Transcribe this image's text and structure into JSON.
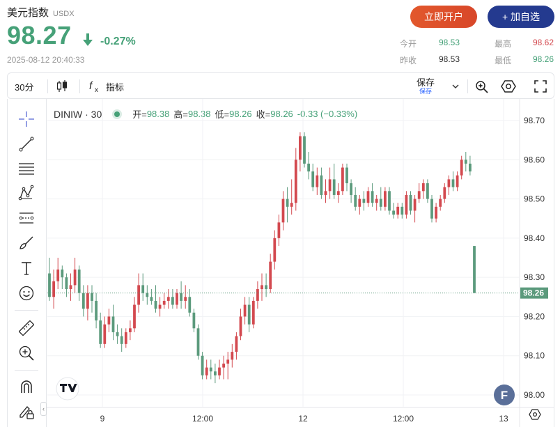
{
  "header": {
    "name": "美元指数",
    "code": "USDX",
    "price": "98.27",
    "change_pct": "-0.27%",
    "timestamp": "2025-08-12 20:40:33",
    "open_account_label": "立即开户",
    "add_watch_label": "+ 加自选",
    "down_color": "#46a178",
    "up_color": "#d3494f"
  },
  "stats": {
    "open_label": "今开",
    "open_value": "98.53",
    "high_label": "最高",
    "high_value": "98.62",
    "prev_close_label": "昨收",
    "prev_close_value": "98.53",
    "low_label": "最低",
    "low_value": "98.26"
  },
  "toolbar": {
    "interval": "30分",
    "indicators_label": "指标",
    "save_label": "保存",
    "save_sub_label": "保存"
  },
  "legend": {
    "symbol": "DINIW · 30",
    "open_label": "开=",
    "open_value": "98.38",
    "high_label": "高=",
    "high_value": "98.38",
    "low_label": "低=",
    "low_value": "98.26",
    "close_label": "收=",
    "close_value": "98.26",
    "change": "-0.33 (−0.33%)"
  },
  "chart_data": {
    "type": "candlestick",
    "symbol": "DINIW",
    "interval": "30",
    "y_ticks": [
      "98.70",
      "98.60",
      "98.50",
      "98.40",
      "98.30",
      "98.20",
      "98.10",
      "98.00"
    ],
    "ylim": [
      97.98,
      98.75
    ],
    "x_tick_labels": [
      "9",
      "12:00",
      "12",
      "12:00",
      "13"
    ],
    "last_price_label": "98.26",
    "last_price": 98.26,
    "up_color": "#d3494f",
    "down_color": "#5b9a7c",
    "candles": [
      [
        98.31,
        98.35,
        98.24,
        98.25
      ],
      [
        98.25,
        98.32,
        98.22,
        98.29
      ],
      [
        98.29,
        98.35,
        98.27,
        98.32
      ],
      [
        98.32,
        98.33,
        98.27,
        98.3
      ],
      [
        98.3,
        98.31,
        98.25,
        98.27
      ],
      [
        98.27,
        98.31,
        98.24,
        98.28
      ],
      [
        98.28,
        98.35,
        98.26,
        98.32
      ],
      [
        98.32,
        98.33,
        98.24,
        98.26
      ],
      [
        98.26,
        98.28,
        98.2,
        98.22
      ],
      [
        98.22,
        98.28,
        98.19,
        98.26
      ],
      [
        98.26,
        98.28,
        98.21,
        98.24
      ],
      [
        98.24,
        98.26,
        98.17,
        98.19
      ],
      [
        98.19,
        98.21,
        98.12,
        98.13
      ],
      [
        98.13,
        98.2,
        98.12,
        98.18
      ],
      [
        98.18,
        98.22,
        98.16,
        98.2
      ],
      [
        98.2,
        98.23,
        98.14,
        98.16
      ],
      [
        98.16,
        98.18,
        98.13,
        98.15
      ],
      [
        98.15,
        98.17,
        98.11,
        98.13
      ],
      [
        98.13,
        98.17,
        98.12,
        98.16
      ],
      [
        98.16,
        98.19,
        98.14,
        98.17
      ],
      [
        98.17,
        98.25,
        98.16,
        98.23
      ],
      [
        98.23,
        98.31,
        98.21,
        98.28
      ],
      [
        98.28,
        98.31,
        98.24,
        98.26
      ],
      [
        98.26,
        98.28,
        98.23,
        98.25
      ],
      [
        98.25,
        98.27,
        98.23,
        98.24
      ],
      [
        98.24,
        98.28,
        98.21,
        98.22
      ],
      [
        98.22,
        98.25,
        98.2,
        98.23
      ],
      [
        98.23,
        98.26,
        98.22,
        98.24
      ],
      [
        98.24,
        98.27,
        98.22,
        98.25
      ],
      [
        98.25,
        98.27,
        98.22,
        98.23
      ],
      [
        98.23,
        98.27,
        98.22,
        98.26
      ],
      [
        98.26,
        98.29,
        98.22,
        98.24
      ],
      [
        98.24,
        98.28,
        98.22,
        98.25
      ],
      [
        98.25,
        98.27,
        98.2,
        98.21
      ],
      [
        98.21,
        98.22,
        98.16,
        98.17
      ],
      [
        98.17,
        98.18,
        98.09,
        98.1
      ],
      [
        98.1,
        98.11,
        98.04,
        98.05
      ],
      [
        98.05,
        98.09,
        98.04,
        98.07
      ],
      [
        98.07,
        98.09,
        98.04,
        98.06
      ],
      [
        98.06,
        98.08,
        98.03,
        98.05
      ],
      [
        98.05,
        98.09,
        98.04,
        98.07
      ],
      [
        98.07,
        98.1,
        98.04,
        98.08
      ],
      [
        98.08,
        98.11,
        98.04,
        98.09
      ],
      [
        98.09,
        98.13,
        98.07,
        98.11
      ],
      [
        98.11,
        98.16,
        98.09,
        98.15
      ],
      [
        98.15,
        98.22,
        98.14,
        98.2
      ],
      [
        98.2,
        98.25,
        98.18,
        98.23
      ],
      [
        98.23,
        98.25,
        98.16,
        98.18
      ],
      [
        98.18,
        98.25,
        98.17,
        98.24
      ],
      [
        98.24,
        98.29,
        98.22,
        98.27
      ],
      [
        98.27,
        98.31,
        98.24,
        98.28
      ],
      [
        98.28,
        98.31,
        98.25,
        98.27
      ],
      [
        98.27,
        98.36,
        98.26,
        98.34
      ],
      [
        98.34,
        98.42,
        98.32,
        98.4
      ],
      [
        98.4,
        98.46,
        98.38,
        98.44
      ],
      [
        98.44,
        98.52,
        98.42,
        98.5
      ],
      [
        98.5,
        98.53,
        98.44,
        98.48
      ],
      [
        98.48,
        98.55,
        98.46,
        98.49
      ],
      [
        98.49,
        98.63,
        98.47,
        98.6
      ],
      [
        98.6,
        98.67,
        98.57,
        98.66
      ],
      [
        98.66,
        98.67,
        98.58,
        98.59
      ],
      [
        98.59,
        98.62,
        98.55,
        98.57
      ],
      [
        98.57,
        98.59,
        98.52,
        98.53
      ],
      [
        98.53,
        98.58,
        98.51,
        98.56
      ],
      [
        98.56,
        98.58,
        98.5,
        98.51
      ],
      [
        98.51,
        98.55,
        98.49,
        98.52
      ],
      [
        98.52,
        98.58,
        98.5,
        98.55
      ],
      [
        98.55,
        98.59,
        98.5,
        98.51
      ],
      [
        98.51,
        98.54,
        98.49,
        98.52
      ],
      [
        98.52,
        98.59,
        98.51,
        98.58
      ],
      [
        98.58,
        98.59,
        98.52,
        98.54
      ],
      [
        98.54,
        98.55,
        98.49,
        98.51
      ],
      [
        98.51,
        98.53,
        98.47,
        98.48
      ],
      [
        98.48,
        98.51,
        98.46,
        98.5
      ],
      [
        98.5,
        98.52,
        98.47,
        98.49
      ],
      [
        98.49,
        98.53,
        98.48,
        98.52
      ],
      [
        98.52,
        98.54,
        98.48,
        98.49
      ],
      [
        98.49,
        98.51,
        98.47,
        98.5
      ],
      [
        98.5,
        98.53,
        98.47,
        98.48
      ],
      [
        98.48,
        98.53,
        98.47,
        98.52
      ],
      [
        98.52,
        98.53,
        98.46,
        98.47
      ],
      [
        98.47,
        98.49,
        98.45,
        98.46
      ],
      [
        98.46,
        98.49,
        98.45,
        98.48
      ],
      [
        98.48,
        98.49,
        98.45,
        98.46
      ],
      [
        98.46,
        98.52,
        98.45,
        98.51
      ],
      [
        98.51,
        98.52,
        98.46,
        98.47
      ],
      [
        98.47,
        98.51,
        98.44,
        98.5
      ],
      [
        98.5,
        98.54,
        98.49,
        98.52
      ],
      [
        98.52,
        98.55,
        98.5,
        98.54
      ],
      [
        98.54,
        98.55,
        98.49,
        98.5
      ],
      [
        98.5,
        98.51,
        98.44,
        98.45
      ],
      [
        98.45,
        98.49,
        98.44,
        98.48
      ],
      [
        98.48,
        98.51,
        98.47,
        98.5
      ],
      [
        98.5,
        98.54,
        98.49,
        98.53
      ],
      [
        98.53,
        98.56,
        98.51,
        98.55
      ],
      [
        98.55,
        98.57,
        98.52,
        98.53
      ],
      [
        98.53,
        98.57,
        98.52,
        98.56
      ],
      [
        98.56,
        98.61,
        98.55,
        98.6
      ],
      [
        98.6,
        98.62,
        98.57,
        98.59
      ],
      [
        98.59,
        98.61,
        98.56,
        98.57
      ],
      [
        98.38,
        98.38,
        98.26,
        98.26
      ]
    ]
  }
}
